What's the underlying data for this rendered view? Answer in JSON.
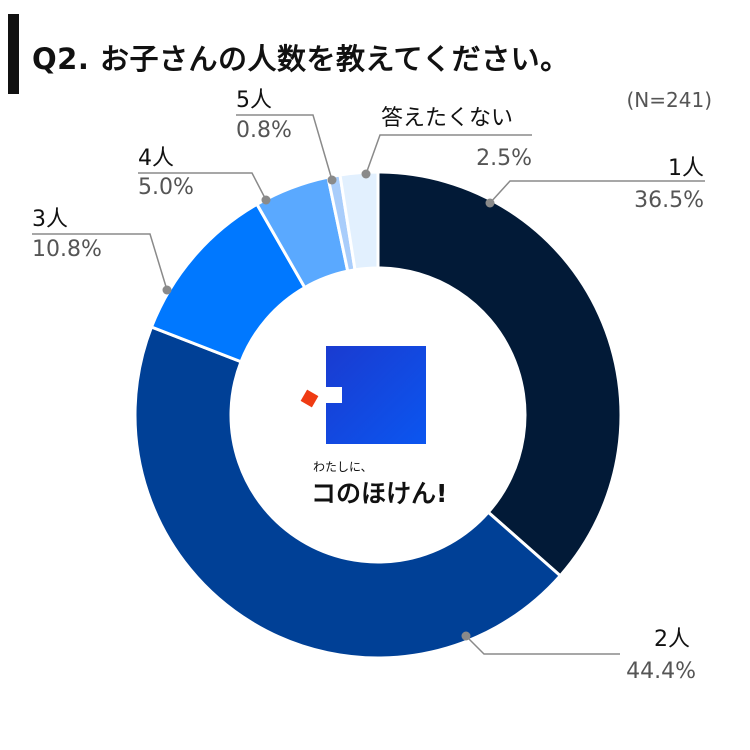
{
  "header": {
    "title": "Q2. お子さんの人数を教えてください。",
    "sample": "(N=241)"
  },
  "logo": {
    "caption": "わたしに、",
    "name": "コのほけん!"
  },
  "chart_data": {
    "type": "pie",
    "donut": true,
    "categories": [
      "1人",
      "2人",
      "3人",
      "4人",
      "5人",
      "答えたくない"
    ],
    "values": [
      36.5,
      44.4,
      10.8,
      5.0,
      0.8,
      2.5
    ],
    "value_labels": [
      "36.5%",
      "44.4%",
      "10.8%",
      "5.0%",
      "0.8%",
      "2.5%"
    ],
    "colors": [
      "#021a37",
      "#004096",
      "#0078ff",
      "#5aa9ff",
      "#a9cdfb",
      "#e2f0fe"
    ],
    "start": "12 o'clock",
    "direction": "clockwise",
    "sample_size": "(N=241)"
  }
}
